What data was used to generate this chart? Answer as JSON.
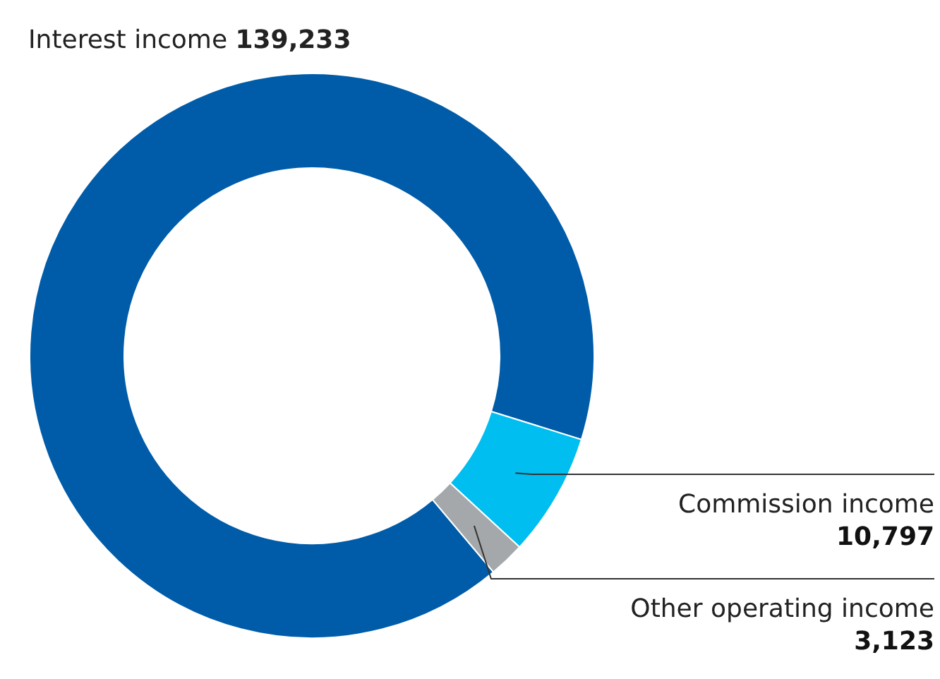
{
  "chart_data": {
    "type": "donut",
    "categories": [
      "Interest income",
      "Commission income",
      "Other operating income"
    ],
    "values": [
      139233,
      10797,
      3123
    ],
    "value_labels": [
      "139,233",
      "10,797",
      "3,123"
    ],
    "colors": [
      "#005ca9",
      "#00bef0",
      "#a5a8ab"
    ]
  }
}
